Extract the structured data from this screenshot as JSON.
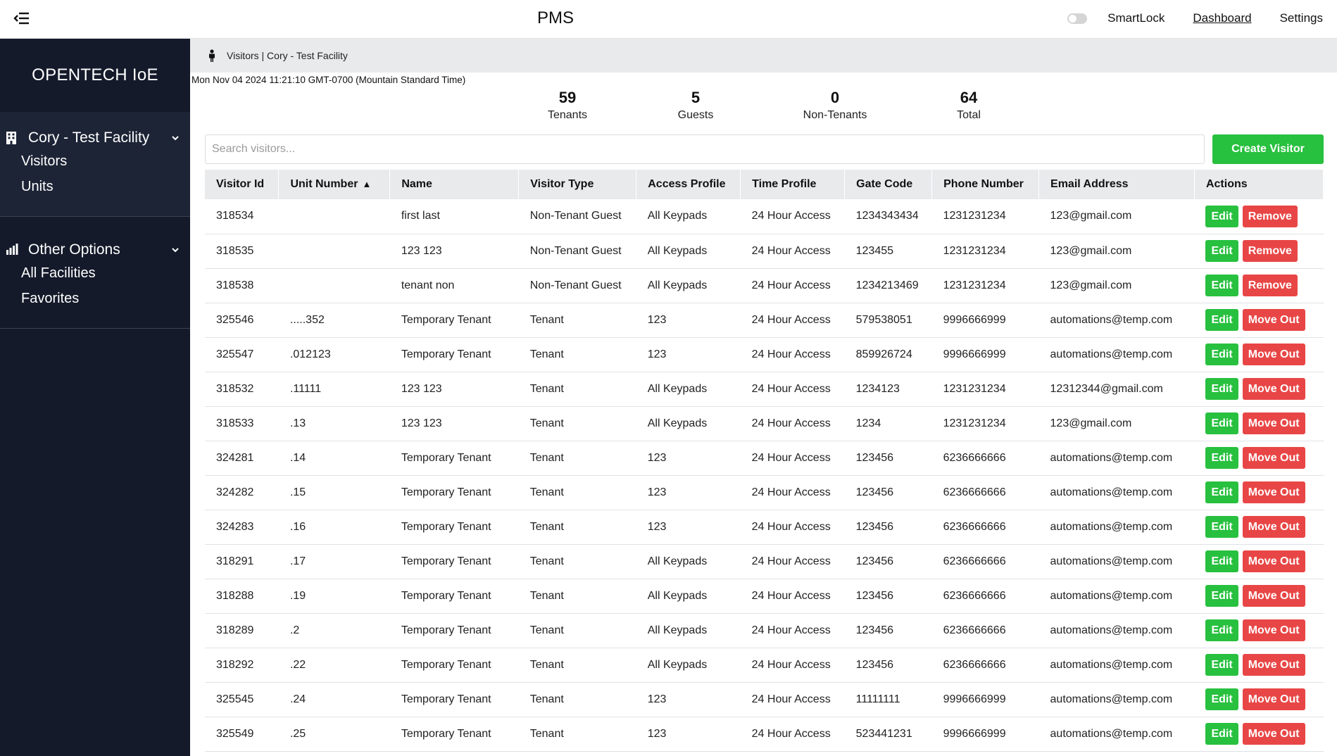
{
  "header": {
    "title": "PMS",
    "smartlock_label": "SmartLock",
    "dashboard_label": "Dashboard",
    "settings_label": "Settings"
  },
  "sidebar": {
    "brand": "OPENTECH IoE",
    "facility": {
      "label": "Cory - Test Facility",
      "items": [
        "Visitors",
        "Units"
      ]
    },
    "other": {
      "label": "Other Options",
      "items": [
        "All Facilities",
        "Favorites"
      ]
    }
  },
  "breadcrumb": "Visitors | Cory - Test Facility",
  "date_string": "Mon Nov 04 2024 11:21:10 GMT-0700 (Mountain Standard Time)",
  "stats": [
    {
      "value": "59",
      "label": "Tenants"
    },
    {
      "value": "5",
      "label": "Guests"
    },
    {
      "value": "0",
      "label": "Non-Tenants"
    },
    {
      "value": "64",
      "label": "Total"
    }
  ],
  "search": {
    "placeholder": "Search visitors..."
  },
  "create_button": "Create Visitor",
  "table": {
    "columns": [
      "Visitor Id",
      "Unit Number",
      "Name",
      "Visitor Type",
      "Access Profile",
      "Time Profile",
      "Gate Code",
      "Phone Number",
      "Email Address",
      "Actions"
    ],
    "sort_indicator": "▲",
    "edit_label": "Edit",
    "rows": [
      {
        "id": "318534",
        "unit": "",
        "name": "first last",
        "type": "Non-Tenant Guest",
        "access": "All Keypads",
        "time": "24 Hour Access",
        "gate": "1234343434",
        "phone": "1231231234",
        "email": "123@gmail.com",
        "action": "Remove"
      },
      {
        "id": "318535",
        "unit": "",
        "name": "123 123",
        "type": "Non-Tenant Guest",
        "access": "All Keypads",
        "time": "24 Hour Access",
        "gate": "123455",
        "phone": "1231231234",
        "email": "123@gmail.com",
        "action": "Remove"
      },
      {
        "id": "318538",
        "unit": "",
        "name": "tenant non",
        "type": "Non-Tenant Guest",
        "access": "All Keypads",
        "time": "24 Hour Access",
        "gate": "1234213469",
        "phone": "1231231234",
        "email": "123@gmail.com",
        "action": "Remove"
      },
      {
        "id": "325546",
        "unit": ".....352",
        "name": "Temporary Tenant",
        "type": "Tenant",
        "access": "123",
        "time": "24 Hour Access",
        "gate": "579538051",
        "phone": "9996666999",
        "email": "automations@temp.com",
        "action": "Move Out"
      },
      {
        "id": "325547",
        "unit": ".012123",
        "name": "Temporary Tenant",
        "type": "Tenant",
        "access": "123",
        "time": "24 Hour Access",
        "gate": "859926724",
        "phone": "9996666999",
        "email": "automations@temp.com",
        "action": "Move Out"
      },
      {
        "id": "318532",
        "unit": ".11111",
        "name": "123 123",
        "type": "Tenant",
        "access": "All Keypads",
        "time": "24 Hour Access",
        "gate": "1234123",
        "phone": "1231231234",
        "email": "12312344@gmail.com",
        "action": "Move Out"
      },
      {
        "id": "318533",
        "unit": ".13",
        "name": "123 123",
        "type": "Tenant",
        "access": "All Keypads",
        "time": "24 Hour Access",
        "gate": "1234",
        "phone": "1231231234",
        "email": "123@gmail.com",
        "action": "Move Out"
      },
      {
        "id": "324281",
        "unit": ".14",
        "name": "Temporary Tenant",
        "type": "Tenant",
        "access": "123",
        "time": "24 Hour Access",
        "gate": "123456",
        "phone": "6236666666",
        "email": "automations@temp.com",
        "action": "Move Out"
      },
      {
        "id": "324282",
        "unit": ".15",
        "name": "Temporary Tenant",
        "type": "Tenant",
        "access": "123",
        "time": "24 Hour Access",
        "gate": "123456",
        "phone": "6236666666",
        "email": "automations@temp.com",
        "action": "Move Out"
      },
      {
        "id": "324283",
        "unit": ".16",
        "name": "Temporary Tenant",
        "type": "Tenant",
        "access": "123",
        "time": "24 Hour Access",
        "gate": "123456",
        "phone": "6236666666",
        "email": "automations@temp.com",
        "action": "Move Out"
      },
      {
        "id": "318291",
        "unit": ".17",
        "name": "Temporary Tenant",
        "type": "Tenant",
        "access": "All Keypads",
        "time": "24 Hour Access",
        "gate": "123456",
        "phone": "6236666666",
        "email": "automations@temp.com",
        "action": "Move Out"
      },
      {
        "id": "318288",
        "unit": ".19",
        "name": "Temporary Tenant",
        "type": "Tenant",
        "access": "All Keypads",
        "time": "24 Hour Access",
        "gate": "123456",
        "phone": "6236666666",
        "email": "automations@temp.com",
        "action": "Move Out"
      },
      {
        "id": "318289",
        "unit": ".2",
        "name": "Temporary Tenant",
        "type": "Tenant",
        "access": "All Keypads",
        "time": "24 Hour Access",
        "gate": "123456",
        "phone": "6236666666",
        "email": "automations@temp.com",
        "action": "Move Out"
      },
      {
        "id": "318292",
        "unit": ".22",
        "name": "Temporary Tenant",
        "type": "Tenant",
        "access": "All Keypads",
        "time": "24 Hour Access",
        "gate": "123456",
        "phone": "6236666666",
        "email": "automations@temp.com",
        "action": "Move Out"
      },
      {
        "id": "325545",
        "unit": ".24",
        "name": "Temporary Tenant",
        "type": "Tenant",
        "access": "123",
        "time": "24 Hour Access",
        "gate": "11111111",
        "phone": "9996666999",
        "email": "automations@temp.com",
        "action": "Move Out"
      },
      {
        "id": "325549",
        "unit": ".25",
        "name": "Temporary Tenant",
        "type": "Tenant",
        "access": "123",
        "time": "24 Hour Access",
        "gate": "523441231",
        "phone": "9996666999",
        "email": "automations@temp.com",
        "action": "Move Out"
      }
    ]
  },
  "colors": {
    "sidebar_bg": "#141a2a",
    "sidebar_active_bg": "#1d2436",
    "success": "#28c03f",
    "danger": "#e84646",
    "table_header_bg": "#e9eaec"
  },
  "icons": {
    "menu_toggle": "menu-collapse-icon",
    "facility": "building-icon",
    "other_options": "chart-building-icon",
    "breadcrumb": "person-icon",
    "expand": "chevron-down-icon"
  }
}
